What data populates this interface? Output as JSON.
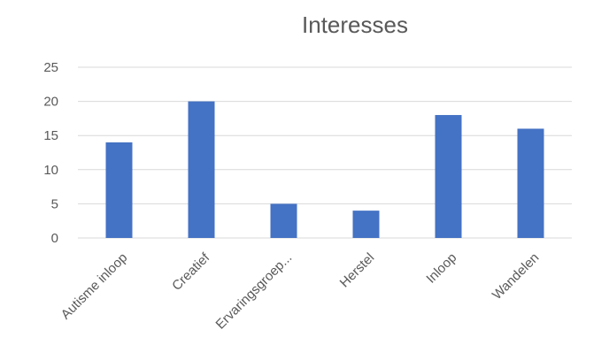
{
  "chart_data": {
    "type": "bar",
    "title": "Interesses",
    "xlabel": "",
    "ylabel": "",
    "categories": [
      "Autisme inloop",
      "Creatief",
      "Ervaringsgroep...",
      "Herstel",
      "Inloop",
      "Wandelen"
    ],
    "values": [
      14,
      20,
      5,
      4,
      18,
      16
    ],
    "ylim": [
      0,
      25
    ],
    "yticks": [
      0,
      5,
      10,
      15,
      20,
      25
    ],
    "grid": true,
    "legend": "none",
    "bar_color": "#4472c4"
  }
}
